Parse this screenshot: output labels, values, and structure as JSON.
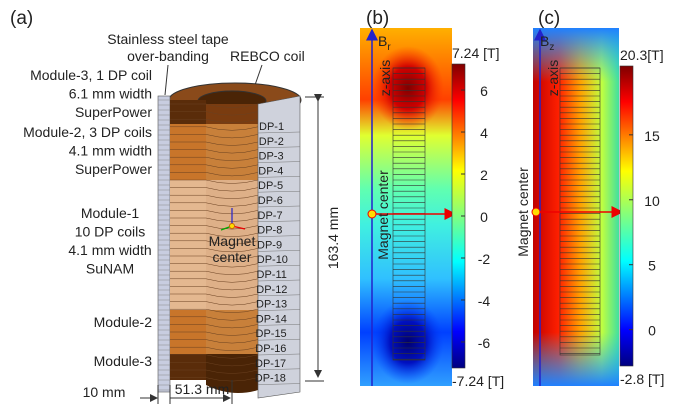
{
  "panel_a": {
    "label": "(a)",
    "tape_label": [
      "Stainless steel tape",
      "over-banding"
    ],
    "coil_label": "REBCO coil",
    "modules": [
      [
        "Module-3, 1 DP coil",
        "6.1 mm width",
        "SuperPower"
      ],
      [
        "Module-2, 3 DP coils",
        "4.1 mm width",
        "SuperPower"
      ],
      [
        "Module-1",
        "10 DP coils",
        "4.1 mm width",
        "SuNAM"
      ],
      [
        "Module-2"
      ],
      [
        "Module-3"
      ]
    ],
    "dp_labels": [
      "DP-1",
      "DP-2",
      "DP-3",
      "DP-4",
      "DP-5",
      "DP-6",
      "DP-7",
      "DP-8",
      "DP-9",
      "DP-10",
      "DP-11",
      "DP-12",
      "DP-13",
      "DP-14",
      "DP-15",
      "DP-16",
      "DP-17",
      "DP-18"
    ],
    "height_label": "163.4 mm",
    "tape_width_label": "10 mm",
    "radius_label": "51.3 mm",
    "center_label": [
      "Magnet",
      "center"
    ]
  },
  "panel_b": {
    "label": "(b)",
    "axis_label": "z-axis",
    "field": "B",
    "field_sub": "r",
    "center_label": "Magnet center",
    "colorbar": {
      "lim": [
        -7.24,
        7.24
      ],
      "ticks": [
        6,
        4,
        2,
        0,
        -2,
        -4,
        -6
      ],
      "max_label": "7.24 [T]",
      "min_label": "-7.24 [T]"
    }
  },
  "panel_c": {
    "label": "(c)",
    "axis_label": "z-axis",
    "field": "B",
    "field_sub": "z",
    "center_label": "Magnet center",
    "colorbar": {
      "lim": [
        -2.8,
        20.3
      ],
      "ticks": [
        15,
        10,
        5,
        0
      ],
      "max_label": "20.3[T]",
      "min_label": "-2.8 [T]"
    }
  }
}
